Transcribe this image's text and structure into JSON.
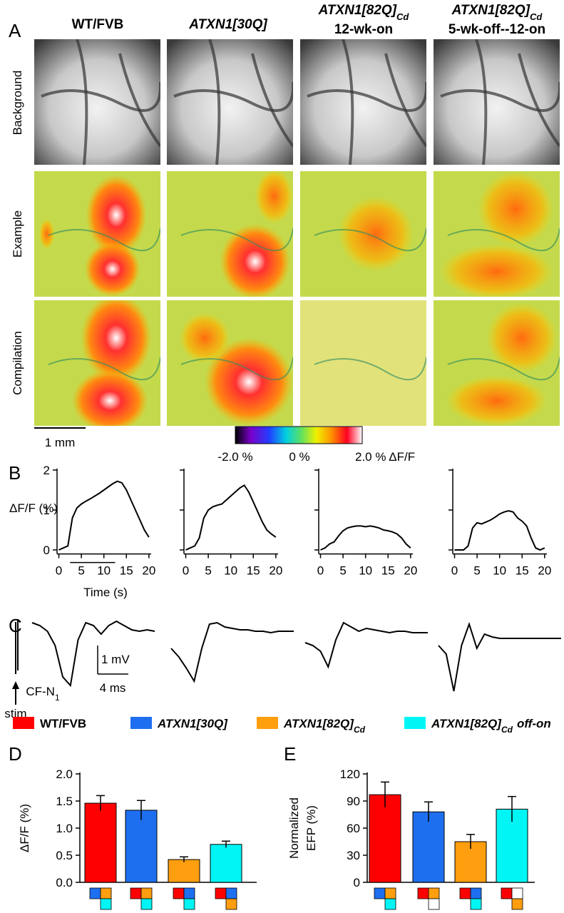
{
  "panels": [
    "A",
    "B",
    "C",
    "D",
    "E"
  ],
  "columns": [
    {
      "title": "WT/FVB"
    },
    {
      "title": "ATXN1[30Q]"
    },
    {
      "title": "ATXN1[82Q]",
      "sub": "Cd",
      "line2": "12-wk-on"
    },
    {
      "title": "ATXN1[82Q]",
      "sub": "Cd",
      "line2": "5-wk-off--12-on"
    }
  ],
  "rows": [
    "Background",
    "Example",
    "Compilation"
  ],
  "scale_bar": "1 mm",
  "colorbar": [
    "-2.0 %",
    "0 %",
    "2.0 % ΔF/F"
  ],
  "legend": [
    {
      "name": "WT/FVB",
      "color": "#ff0000"
    },
    {
      "name": "ATXN1[30Q]",
      "color": "#1e6ff0"
    },
    {
      "name": "ATXN1[82Q]",
      "sub": "Cd",
      "color": "#ff9e0f"
    },
    {
      "name": "ATXN1[82Q]",
      "sub": "Cd",
      "suffix": "off-on",
      "color": "#00f5f5"
    }
  ],
  "chart_data": [
    {
      "type": "line",
      "x": [
        0,
        1,
        2,
        3,
        4,
        5,
        6,
        7,
        8,
        9,
        10,
        11,
        12,
        13,
        14,
        15,
        16,
        17,
        18,
        19,
        20
      ],
      "values": [
        0,
        0.05,
        0.1,
        0.8,
        1.05,
        1.15,
        1.22,
        1.28,
        1.35,
        1.42,
        1.5,
        1.58,
        1.66,
        1.72,
        1.68,
        1.5,
        1.25,
        1.0,
        0.75,
        0.5,
        0.32
      ],
      "xlim": [
        -0.4,
        20.5
      ],
      "ylim": [
        -0.1,
        2
      ],
      "xticks": [
        0,
        5,
        10,
        15,
        20
      ],
      "yticks": [
        0,
        1,
        2
      ],
      "ylabel": "ΔF/F (%)",
      "xlabel": "Time (s)",
      "stimulus": [
        2.5,
        12.5
      ],
      "color": "#000000"
    },
    {
      "type": "line",
      "x": [
        0,
        1,
        2,
        3,
        4,
        5,
        6,
        7,
        8,
        9,
        10,
        11,
        12,
        13,
        14,
        15,
        16,
        17,
        18,
        19,
        20
      ],
      "values": [
        0,
        0.05,
        0.1,
        0.3,
        0.8,
        1.0,
        1.08,
        1.12,
        1.15,
        1.25,
        1.35,
        1.45,
        1.55,
        1.62,
        1.45,
        1.2,
        0.95,
        0.7,
        0.5,
        0.4,
        0.32
      ],
      "xlim": [
        -0.4,
        20.5
      ],
      "ylim": [
        -0.1,
        2
      ],
      "xticks": [
        0,
        5,
        10,
        15,
        20
      ],
      "color": "#000000"
    },
    {
      "type": "line",
      "x": [
        0,
        1,
        2,
        3,
        4,
        5,
        6,
        7,
        8,
        9,
        10,
        11,
        12,
        13,
        14,
        15,
        16,
        17,
        18,
        19,
        20
      ],
      "values": [
        0,
        0.05,
        0.15,
        0.2,
        0.35,
        0.48,
        0.55,
        0.58,
        0.6,
        0.6,
        0.58,
        0.6,
        0.58,
        0.55,
        0.5,
        0.48,
        0.45,
        0.4,
        0.3,
        0.15,
        0.05
      ],
      "xlim": [
        -0.4,
        20.5
      ],
      "ylim": [
        -0.1,
        2
      ],
      "xticks": [
        0,
        5,
        10,
        15,
        20
      ],
      "color": "#000000"
    },
    {
      "type": "line",
      "x": [
        0,
        1,
        2,
        3,
        4,
        5,
        6,
        7,
        8,
        9,
        10,
        11,
        12,
        13,
        14,
        15,
        16,
        17,
        18,
        19,
        20
      ],
      "values": [
        0,
        0,
        0,
        0.1,
        0.55,
        0.68,
        0.65,
        0.7,
        0.75,
        0.82,
        0.9,
        0.95,
        0.98,
        0.95,
        0.8,
        0.72,
        0.6,
        0.3,
        0.05,
        0,
        0.05
      ],
      "xlim": [
        -0.4,
        20.5
      ],
      "ylim": [
        -0.1,
        2
      ],
      "xticks": [
        0,
        5,
        10,
        15,
        20
      ],
      "color": "#000000"
    },
    {
      "type": "trace",
      "x": [
        0,
        1,
        2,
        3,
        4,
        5,
        6,
        7,
        8,
        9,
        10,
        11,
        12,
        13,
        14,
        15,
        16
      ],
      "series": [
        {
          "values": [
            0.3,
            0.2,
            0.0,
            -0.5,
            -1.6,
            -1.9,
            -0.3,
            0.3,
            0.2,
            -0.1,
            0.2,
            0.35,
            0.2,
            0.05,
            0,
            0.05,
            0
          ]
        },
        {
          "values": [
            -0.6,
            -0.9,
            -1.3,
            -1.75,
            -0.6,
            0.25,
            0.3,
            0.15,
            0.1,
            0.05,
            0.05,
            0.0,
            0.0,
            -0.05,
            0,
            0,
            0.0
          ]
        },
        {
          "values": [
            -0.4,
            -0.5,
            -0.7,
            -1.25,
            -0.3,
            0.3,
            0.15,
            0.0,
            0.1,
            0.05,
            0.0,
            -0.05,
            0,
            0,
            -0.05,
            -0.05,
            -0.05
          ]
        },
        {
          "values": [
            -0.5,
            -0.8,
            -2.1,
            -0.5,
            0.25,
            -0.6,
            -0.1,
            -0.2,
            -0.25,
            -0.25,
            -0.25,
            -0.25,
            -0.25,
            -0.25,
            -0.25,
            -0.25,
            -0.25
          ]
        }
      ],
      "scale_x": {
        "value": 4,
        "label": "4 ms"
      },
      "scale_y": {
        "value": 1,
        "label": "1 mV"
      },
      "annotation": {
        "text": "CF-N",
        "sub": "1"
      },
      "stim": "stim"
    },
    {
      "type": "bar",
      "values": [
        1.46,
        1.33,
        0.42,
        0.7
      ],
      "errors": [
        0.14,
        0.18,
        0.05,
        0.06
      ],
      "ylim": [
        0,
        2
      ],
      "yticks": [
        {
          "value": 0,
          "label": "0.0"
        },
        {
          "value": 0.5,
          "label": "0.5"
        },
        {
          "value": 1,
          "label": "1.0"
        },
        {
          "value": 1.5,
          "label": "1.5"
        },
        {
          "value": 2,
          "label": "2.0"
        }
      ],
      "ylabel": [
        "ΔF/F (%)"
      ]
    },
    {
      "type": "bar",
      "values": [
        97,
        78,
        45,
        81
      ],
      "errors": [
        14,
        11,
        8,
        14
      ],
      "ylim": [
        0,
        120
      ],
      "yticks": [
        0,
        30,
        60,
        90,
        120
      ],
      "ylabel": [
        "Normalized",
        "EFP (%)"
      ]
    }
  ]
}
